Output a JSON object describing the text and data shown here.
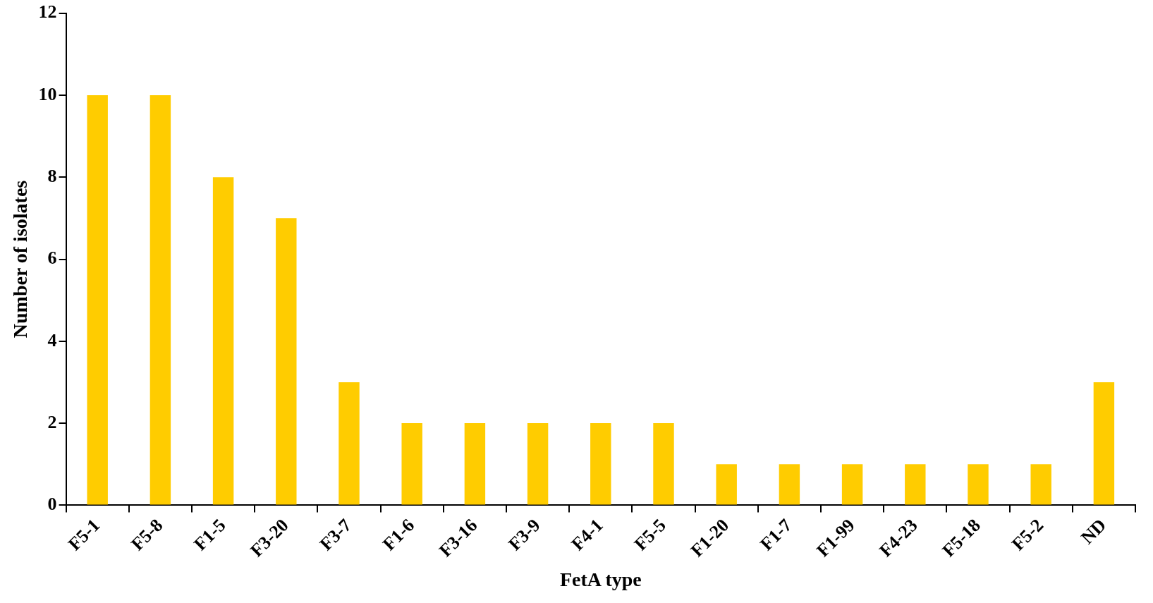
{
  "chart_data": {
    "type": "bar",
    "xlabel": "FetA type",
    "ylabel": "Number of isolates",
    "categories": [
      "F5-1",
      "F5-8",
      "F1-5",
      "F3-20",
      "F3-7",
      "F1-6",
      "F3-16",
      "F3-9",
      "F4-1",
      "F5-5",
      "F1-20",
      "F1-7",
      "F1-99",
      "F4-23",
      "F5-18",
      "F5-2",
      "ND"
    ],
    "values": [
      10,
      10,
      8,
      7,
      3,
      2,
      2,
      2,
      2,
      2,
      1,
      1,
      1,
      1,
      1,
      1,
      3
    ],
    "color": "#ffcc00",
    "ylim": [
      0,
      12
    ],
    "yticks": [
      0,
      2,
      4,
      6,
      8,
      10,
      12
    ],
    "grid": false,
    "legend": false
  }
}
